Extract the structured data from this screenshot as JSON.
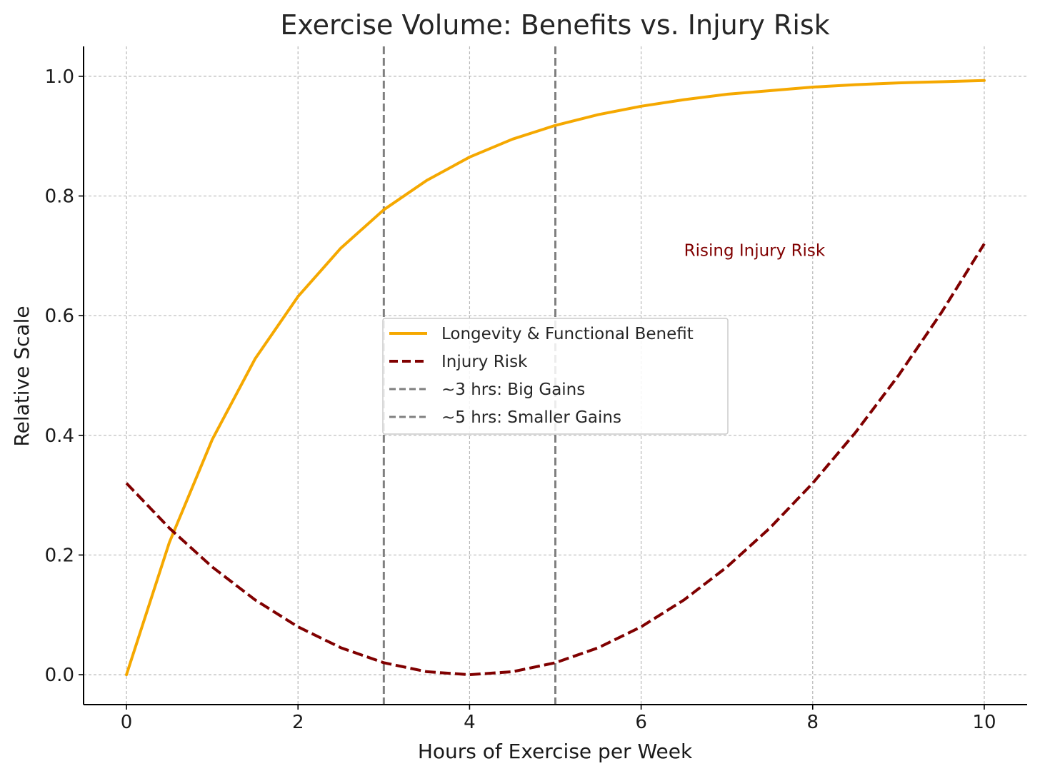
{
  "chart_data": {
    "type": "line",
    "title": "Exercise Volume: Benefits vs. Injury Risk",
    "xlabel": "Hours of Exercise per Week",
    "ylabel": "Relative Scale",
    "xlim": [
      -0.5,
      10.5
    ],
    "ylim": [
      -0.05,
      1.05
    ],
    "xticks": [
      0,
      2,
      4,
      6,
      8,
      10
    ],
    "xtick_labels": [
      "0",
      "2",
      "4",
      "6",
      "8",
      "10"
    ],
    "yticks": [
      0.0,
      0.2,
      0.4,
      0.6,
      0.8,
      1.0
    ],
    "ytick_labels": [
      "0.0",
      "0.2",
      "0.4",
      "0.6",
      "0.8",
      "1.0"
    ],
    "grid": true,
    "series": [
      {
        "name": "Longevity & Functional Benefit",
        "color": "#f5a800",
        "style": "solid",
        "x": [
          0,
          0.5,
          1,
          1.5,
          2,
          2.5,
          3,
          3.5,
          4,
          4.5,
          5,
          5.5,
          6,
          6.5,
          7,
          7.5,
          8,
          8.5,
          9,
          9.5,
          10
        ],
        "y": [
          0.0,
          0.221,
          0.393,
          0.528,
          0.632,
          0.713,
          0.777,
          0.826,
          0.865,
          0.895,
          0.918,
          0.936,
          0.95,
          0.961,
          0.97,
          0.976,
          0.982,
          0.986,
          0.989,
          0.991,
          0.993
        ]
      },
      {
        "name": "Injury Risk",
        "color": "#800000",
        "style": "dashed",
        "x": [
          0,
          0.5,
          1,
          1.5,
          2,
          2.5,
          3,
          3.5,
          4,
          4.5,
          5,
          5.5,
          6,
          6.5,
          7,
          7.5,
          8,
          8.5,
          9,
          9.5,
          10
        ],
        "y": [
          0.32,
          0.245,
          0.18,
          0.125,
          0.08,
          0.045,
          0.02,
          0.005,
          0.0,
          0.005,
          0.02,
          0.045,
          0.08,
          0.125,
          0.18,
          0.245,
          0.32,
          0.405,
          0.5,
          0.605,
          0.72
        ]
      }
    ],
    "vlines": [
      {
        "x": 3,
        "label": "~3 hrs: Big Gains",
        "color": "#7f7f7f",
        "style": "dashed"
      },
      {
        "x": 5,
        "label": "~5 hrs: Smaller Gains",
        "color": "#7f7f7f",
        "style": "dashed"
      }
    ],
    "annotations": [
      {
        "text": "Rising Injury Risk",
        "x": 6.5,
        "y": 0.7,
        "color": "#800000"
      }
    ],
    "legend_position": "center"
  }
}
